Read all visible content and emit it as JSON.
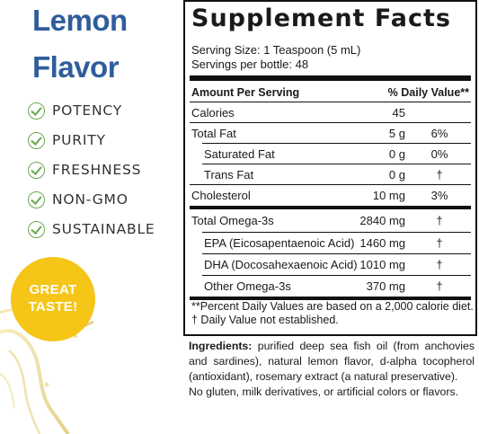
{
  "flavor": {
    "line1": "Lemon",
    "line2": "Flavor"
  },
  "benefits": [
    "POTENCY",
    "PURITY",
    "FRESHNESS",
    "NON-GMO",
    "SUSTAINABLE"
  ],
  "badge": {
    "line1": "GREAT",
    "line2": "TASTE!"
  },
  "facts": {
    "title": "Supplement Facts",
    "serving_size": "Serving Size: 1 Teaspoon (5 mL)",
    "servings_per": "Servings per bottle: 48",
    "header_amount": "Amount Per Serving",
    "header_dv": "% Daily Value**",
    "rows": [
      {
        "name": "Calories",
        "amount": "45",
        "dv": ""
      },
      {
        "name": "Total Fat",
        "amount": "5 g",
        "dv": "6%"
      },
      {
        "name": "Saturated Fat",
        "amount": "0 g",
        "dv": "0%"
      },
      {
        "name": "Trans Fat",
        "amount": "0 g",
        "dv": "†"
      },
      {
        "name": "Cholesterol",
        "amount": "10 mg",
        "dv": "3%"
      },
      {
        "name": "Total Omega-3s",
        "amount": "2840 mg",
        "dv": "†"
      },
      {
        "name": "EPA (Eicosapentaenoic Acid)",
        "amount": "1460 mg",
        "dv": "†"
      },
      {
        "name": "DHA (Docosahexaenoic Acid)",
        "amount": "1010 mg",
        "dv": "†"
      },
      {
        "name": "Other Omega-3s",
        "amount": "370 mg",
        "dv": "†"
      }
    ],
    "note1": "**Percent Daily Values are based on a 2,000 calorie diet.",
    "note2": "†  Daily Value not established."
  },
  "ingredients": {
    "label": "Ingredients:",
    "text": " purified deep sea fish oil (from anchovies and sardines), natural lemon flavor, d-alpha tocopherol (antioxidant), rosemary extract (a natural preservative).",
    "free_from": "No gluten, milk derivatives, or artificial colors or flavors."
  },
  "colors": {
    "title_blue": "#2f5d9c",
    "check_green": "#6aa84f",
    "badge_yellow": "#f5c518"
  }
}
